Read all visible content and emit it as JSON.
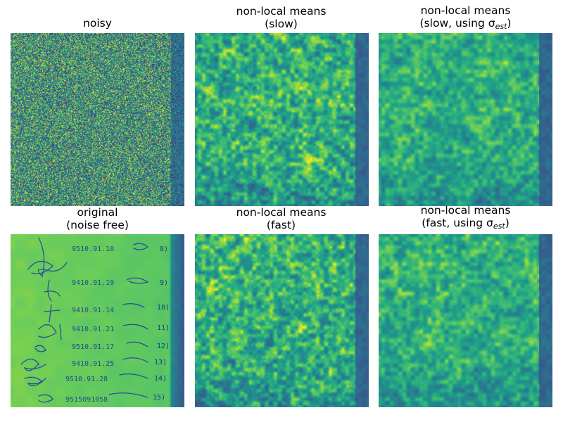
{
  "figure": {
    "colormap": "viridis",
    "panels": [
      {
        "id": "noisy",
        "title_lines": [
          "noisy"
        ],
        "sigma_est": false
      },
      {
        "id": "nlm_slow",
        "title_lines": [
          "non-local means",
          "(slow)"
        ],
        "sigma_est": false
      },
      {
        "id": "nlm_slow_est",
        "title_lines": [
          "non-local means",
          "(slow, using σ"
        ],
        "sigma_est": true
      },
      {
        "id": "original",
        "title_lines": [
          "original",
          "(noise free)"
        ],
        "sigma_est": false
      },
      {
        "id": "nlm_fast",
        "title_lines": [
          "non-local means",
          "(fast)"
        ],
        "sigma_est": false
      },
      {
        "id": "nlm_fast_est",
        "title_lines": [
          "non-local means",
          "(fast, using σ"
        ],
        "sigma_est": true
      }
    ],
    "sigma_subscript": "est",
    "sigma_close": ")"
  },
  "original_image": {
    "dates": [
      "9510.91.18",
      "9410.91.19",
      "9410.91.14",
      "9410.91.21",
      "9510.91.17",
      "9410.91.25",
      "9510.91.28",
      "9515091058"
    ],
    "row_indices": [
      "8)",
      "9)",
      "10)",
      "11)",
      "12)",
      "13)",
      "14)",
      "15)"
    ]
  }
}
